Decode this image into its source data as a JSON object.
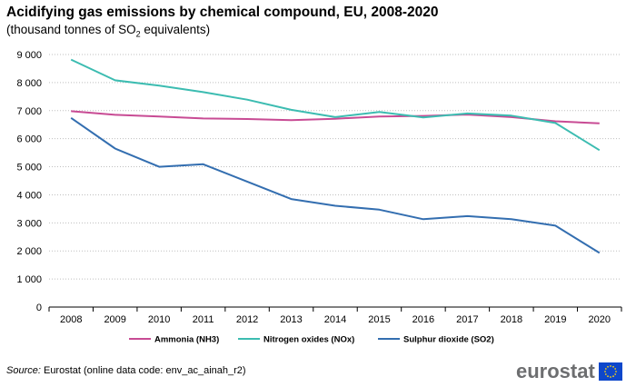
{
  "header": {
    "title": "Acidifying gas emissions by chemical compound, EU, 2008-2020",
    "subtitle_prefix": "(thousand tonnes of SO",
    "subtitle_sub": "2",
    "subtitle_suffix": " equivalents)"
  },
  "footer": {
    "source_label": "Source:",
    "source_text": " Eurostat (online data code: env_ac_ainah_r2)",
    "logo_text": "eurostat"
  },
  "colors": {
    "ammonia": "#c84b94",
    "nitrogen": "#3cbcb1",
    "sulphur": "#336eb0",
    "grid": "#bfbfbf",
    "eu_flag": "#0e47cb",
    "eu_stars": "#f7d117"
  },
  "icons": {
    "logo_flag": "eu-flag-icon"
  },
  "chart_data": {
    "type": "line",
    "title": "Acidifying gas emissions by chemical compound, EU, 2008-2020",
    "subtitle": "(thousand tonnes of SO2 equivalents)",
    "xlabel": "",
    "ylabel": "",
    "categories": [
      "2008",
      "2009",
      "2010",
      "2011",
      "2012",
      "2013",
      "2014",
      "2015",
      "2016",
      "2017",
      "2018",
      "2019",
      "2020"
    ],
    "ylim": [
      0,
      9000
    ],
    "yticks": [
      0,
      1000,
      2000,
      3000,
      4000,
      5000,
      6000,
      7000,
      8000,
      9000
    ],
    "ytick_labels": [
      "0",
      "1 000",
      "2 000",
      "3 000",
      "4 000",
      "5 000",
      "6 000",
      "7 000",
      "8 000",
      "9 000"
    ],
    "grid": "horizontal dotted",
    "legend_position": "bottom",
    "series": [
      {
        "name": "Ammonia (NH3)",
        "color_key": "ammonia",
        "values": [
          6980,
          6850,
          6790,
          6720,
          6700,
          6660,
          6710,
          6790,
          6810,
          6860,
          6770,
          6620,
          6550
        ]
      },
      {
        "name": "Nitrogen oxides (NOx)",
        "color_key": "nitrogen",
        "values": [
          8820,
          8080,
          7890,
          7660,
          7390,
          7030,
          6770,
          6950,
          6760,
          6900,
          6820,
          6560,
          5590
        ]
      },
      {
        "name": "Sulphur dioxide (SO2)",
        "color_key": "sulphur",
        "values": [
          6740,
          5650,
          5000,
          5090,
          4470,
          3850,
          3610,
          3470,
          3130,
          3240,
          3130,
          2900,
          1930
        ]
      }
    ]
  }
}
